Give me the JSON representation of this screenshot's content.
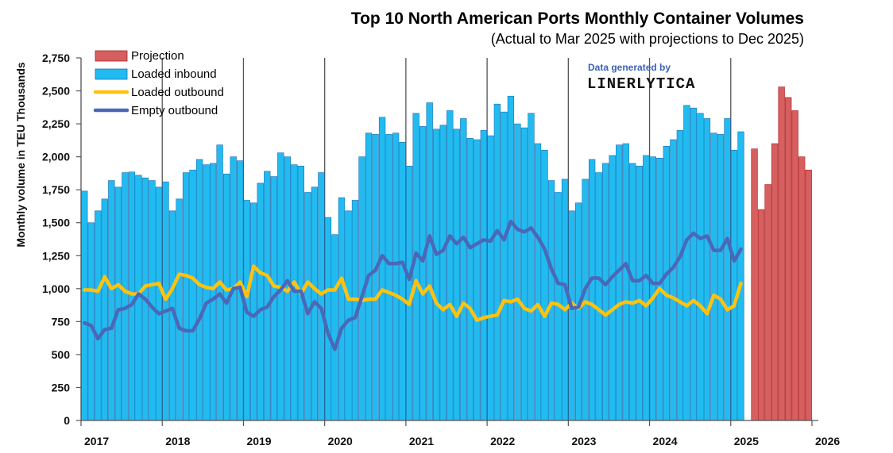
{
  "chart_data": {
    "type": "bar",
    "title": "Top 10 North American Ports Monthly Container Volumes",
    "subtitle": "(Actual to Mar 2025 with projections to Dec 2025)",
    "ylabel": "Monthly volume in TEU Thousands",
    "xlabel": "",
    "ylim": [
      0,
      2750
    ],
    "yticks": [
      "0",
      "250",
      "500",
      "750",
      "1,000",
      "1,250",
      "1,500",
      "1,750",
      "2,000",
      "2,250",
      "2,500",
      "2,750"
    ],
    "xtick_labels": [
      "2017",
      "2018",
      "2019",
      "2020",
      "2021",
      "2022",
      "2023",
      "2024",
      "2025",
      "2026"
    ],
    "credit": {
      "line1": "Data generated by",
      "line2": "LINERLYTICA"
    },
    "legend_position": "top-left",
    "colors": {
      "projection": "#d65f5f",
      "projection_edge": "#b02020",
      "loaded_inbound": "#22bbf0",
      "loaded_inbound_edge": "#1a6fb5",
      "loaded_outbound": "#ffc20e",
      "empty_outbound": "#4a68b8"
    },
    "series": [
      {
        "name": "Projection",
        "kind": "bar",
        "start_month_index": 99,
        "values": [
          2060,
          1600,
          1790,
          2100,
          2530,
          2450,
          2350,
          2000,
          1900
        ]
      },
      {
        "name": "Loaded inbound",
        "kind": "bar",
        "start_month_index": 0,
        "values": [
          1740,
          1500,
          1590,
          1680,
          1820,
          1770,
          1880,
          1885,
          1860,
          1840,
          1820,
          1770,
          1810,
          1590,
          1680,
          1880,
          1900,
          1980,
          1940,
          1950,
          2090,
          1870,
          2000,
          1970,
          1670,
          1650,
          1800,
          1890,
          1850,
          2030,
          2000,
          1940,
          1930,
          1730,
          1770,
          1880,
          1540,
          1410,
          1690,
          1590,
          1670,
          2000,
          2180,
          2170,
          2300,
          2170,
          2180,
          2110,
          1930,
          2330,
          2230,
          2410,
          2210,
          2240,
          2350,
          2210,
          2290,
          2140,
          2130,
          2200,
          2160,
          2400,
          2340,
          2460,
          2250,
          2220,
          2330,
          2100,
          2050,
          1820,
          1730,
          1830,
          1590,
          1650,
          1830,
          1980,
          1880,
          1950,
          2010,
          2090,
          2100,
          1950,
          1930,
          2010,
          2000,
          1990,
          2080,
          2130,
          2200,
          2390,
          2370,
          2330,
          2290,
          2180,
          2170,
          2290,
          2050,
          2190
        ]
      },
      {
        "name": "Loaded outbound",
        "kind": "line",
        "start_month_index": 0,
        "values": [
          990,
          990,
          980,
          1090,
          1000,
          1030,
          980,
          960,
          960,
          1020,
          1030,
          1040,
          920,
          1000,
          1110,
          1100,
          1080,
          1030,
          1010,
          1000,
          1050,
          990,
          1000,
          1050,
          940,
          1170,
          1120,
          1100,
          1020,
          1010,
          980,
          1050,
          960,
          1050,
          1000,
          960,
          990,
          990,
          1080,
          920,
          920,
          910,
          920,
          920,
          990,
          970,
          950,
          920,
          880,
          1060,
          960,
          1020,
          890,
          840,
          880,
          790,
          890,
          850,
          760,
          780,
          790,
          800,
          910,
          900,
          920,
          850,
          830,
          880,
          790,
          890,
          880,
          840,
          890,
          850,
          900,
          880,
          840,
          800,
          840,
          880,
          900,
          890,
          910,
          870,
          930,
          1000,
          950,
          930,
          900,
          870,
          910,
          870,
          810,
          950,
          920,
          840,
          870,
          1040
        ]
      },
      {
        "name": "Empty outbound",
        "kind": "line",
        "start_month_index": 0,
        "values": [
          740,
          720,
          620,
          690,
          700,
          840,
          850,
          880,
          960,
          920,
          860,
          810,
          830,
          850,
          700,
          680,
          680,
          770,
          890,
          920,
          960,
          890,
          1000,
          1010,
          820,
          790,
          840,
          860,
          940,
          990,
          1060,
          980,
          980,
          810,
          900,
          850,
          660,
          540,
          700,
          760,
          780,
          940,
          1100,
          1140,
          1250,
          1190,
          1190,
          1200,
          1070,
          1270,
          1210,
          1400,
          1260,
          1290,
          1400,
          1340,
          1390,
          1310,
          1340,
          1370,
          1360,
          1440,
          1370,
          1510,
          1450,
          1430,
          1460,
          1390,
          1300,
          1150,
          1040,
          1030,
          850,
          860,
          1000,
          1080,
          1080,
          1030,
          1090,
          1140,
          1190,
          1060,
          1060,
          1100,
          1040,
          1040,
          1110,
          1160,
          1240,
          1370,
          1420,
          1380,
          1400,
          1290,
          1290,
          1380,
          1210,
          1300
        ]
      }
    ]
  }
}
